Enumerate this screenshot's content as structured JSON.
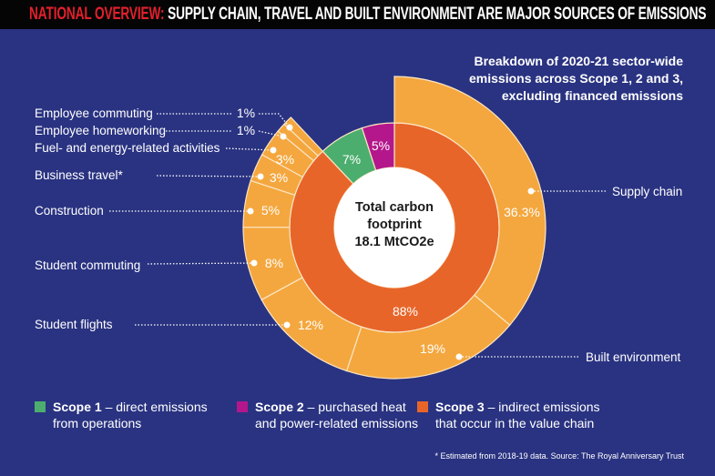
{
  "header": {
    "title_highlight": "NATIONAL OVERVIEW:",
    "title_rest": "SUPPLY CHAIN, TRAVEL AND BUILT ENVIRONMENT ARE MAJOR SOURCES OF EMISSIONS"
  },
  "subtitle": [
    "Breakdown of 2020-21 sector-wide",
    "emissions across Scope 1, 2 and 3,",
    "excluding financed emissions"
  ],
  "colors": {
    "background": "#2a3381",
    "scope1": "#4cae6e",
    "scope2": "#b4178b",
    "scope3": "#e8652a",
    "scope3_breakdown": "#f4a73e",
    "center": "#ffffff",
    "title_highlight": "#e3202c"
  },
  "chart_data": {
    "type": "sunburst",
    "center_label": [
      "Total carbon",
      "footprint",
      "18.1 MtCO2e"
    ],
    "inner_ring": [
      {
        "name": "Scope 3",
        "value": 88,
        "label": "88%"
      },
      {
        "name": "Scope 1",
        "value": 7,
        "label": "7%"
      },
      {
        "name": "Scope 2",
        "value": 5,
        "label": "5%"
      }
    ],
    "outer_ring": [
      {
        "name": "Supply chain",
        "value": 36.3,
        "label": "36.3%"
      },
      {
        "name": "Built environment",
        "value": 19,
        "label": "19%"
      },
      {
        "name": "Student flights",
        "value": 12,
        "label": "12%"
      },
      {
        "name": "Student commuting",
        "value": 8,
        "label": "8%"
      },
      {
        "name": "Construction",
        "value": 5,
        "label": "5%"
      },
      {
        "name": "Business travel*",
        "value": 3,
        "label": "3%"
      },
      {
        "name": "Fuel- and energy-related activities",
        "value": 3,
        "label": "3%"
      },
      {
        "name": "Employee homeworking",
        "value": 1,
        "label": "1%"
      },
      {
        "name": "Employee commuting",
        "value": 1,
        "label": "1%"
      }
    ]
  },
  "legend": [
    {
      "bold": "Scope 1",
      "text": " – direct emissions",
      "line2": "from operations"
    },
    {
      "bold": "Scope 2",
      "text": " – purchased heat",
      "line2": "and power-related emissions"
    },
    {
      "bold": "Scope 3",
      "text": " – indirect emissions",
      "line2": "that occur in the value chain"
    }
  ],
  "footnote": "* Estimated from 2018-19 data. Source: The Royal Anniversary Trust"
}
